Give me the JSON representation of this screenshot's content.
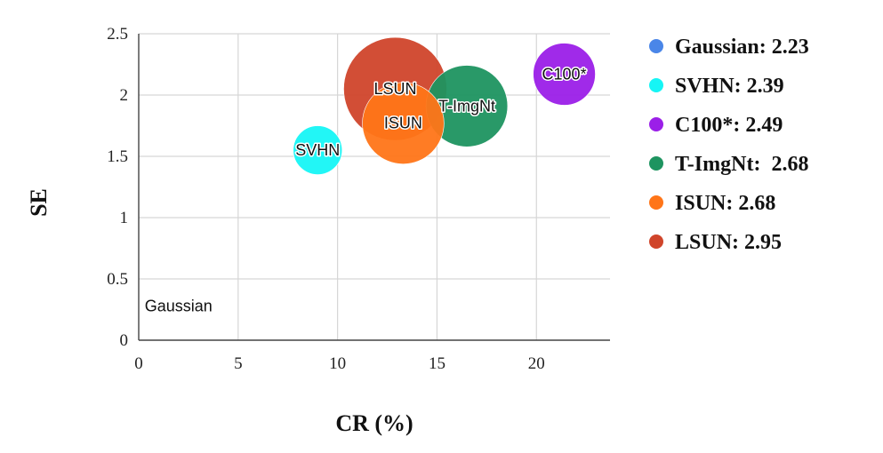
{
  "chart_data": {
    "type": "scatter",
    "title": "",
    "xlabel": "CR (%)",
    "ylabel": "SE",
    "xlim": [
      0,
      23.7
    ],
    "ylim": [
      0,
      2.5
    ],
    "x_ticks": [
      0,
      5,
      10,
      15,
      20
    ],
    "y_ticks": [
      0,
      0.5,
      1,
      1.5,
      2,
      2.5
    ],
    "y_tick_labels": [
      "0",
      "0.5",
      "1",
      "1.5",
      "2",
      "2.5"
    ],
    "grid": true,
    "legend_position": "right",
    "size_encoding": "bubble area",
    "series": [
      {
        "name": "Gaussian",
        "legend": "Gaussian: 2.23",
        "x": 2.0,
        "y": 0.28,
        "size": 2.23,
        "color": "#4a86e8"
      },
      {
        "name": "SVHN",
        "legend": "SVHN: 2.39",
        "x": 9.0,
        "y": 1.55,
        "size": 2.39,
        "color": "#16f5f5"
      },
      {
        "name": "C100*",
        "legend": "C100*: 2.49",
        "x": 21.4,
        "y": 2.17,
        "size": 2.49,
        "color": "#9b1fe8"
      },
      {
        "name": "T-ImgNt",
        "legend": "T-ImgNt:  2.68",
        "x": 16.5,
        "y": 1.91,
        "size": 2.68,
        "color": "#1e9460"
      },
      {
        "name": "ISUN",
        "legend": "ISUN: 2.68",
        "x": 13.3,
        "y": 1.77,
        "size": 2.68,
        "color": "#ff7518"
      },
      {
        "name": "LSUN",
        "legend": "LSUN: 2.95",
        "x": 12.9,
        "y": 2.05,
        "size": 2.95,
        "color": "#d0452b"
      }
    ]
  }
}
